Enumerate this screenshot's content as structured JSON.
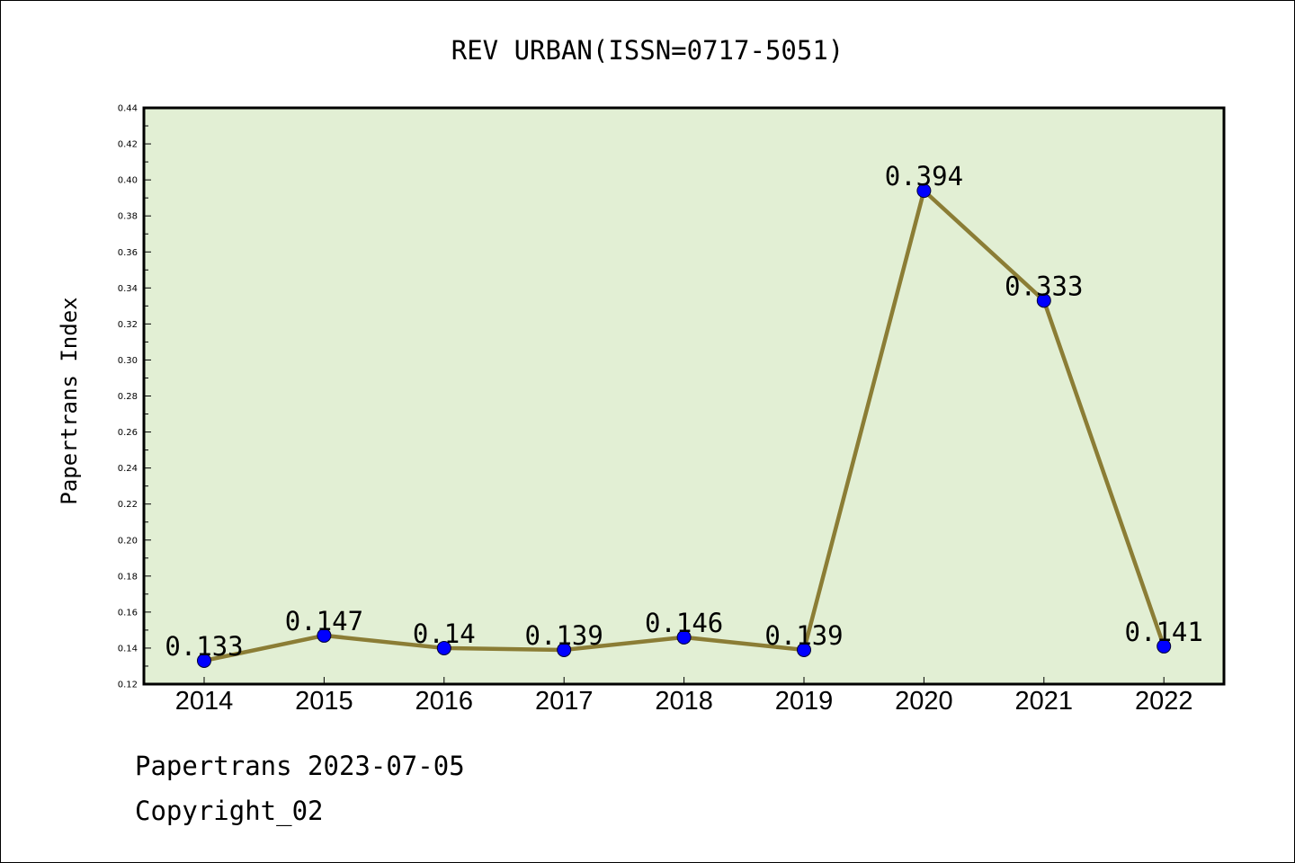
{
  "chart_data": {
    "type": "line",
    "title": "REV URBAN(ISSN=0717-5051)",
    "xlabel": "",
    "ylabel": "Papertrans Index",
    "categories": [
      "2014",
      "2015",
      "2016",
      "2017",
      "2018",
      "2019",
      "2020",
      "2021",
      "2022"
    ],
    "values": [
      0.133,
      0.147,
      0.14,
      0.139,
      0.146,
      0.139,
      0.394,
      0.333,
      0.141
    ],
    "data_labels": [
      "0.133",
      "0.147",
      "0.14",
      "0.139",
      "0.146",
      "0.139",
      "0.394",
      "0.333",
      "0.141"
    ],
    "ylim": [
      0.12,
      0.44
    ],
    "yticks": [
      "0.12",
      "0.14",
      "0.16",
      "0.18",
      "0.20",
      "0.22",
      "0.24",
      "0.26",
      "0.28",
      "0.30",
      "0.32",
      "0.34",
      "0.36",
      "0.38",
      "0.40",
      "0.42",
      "0.44"
    ],
    "grid": false,
    "colors": {
      "plot_background": "#e2efd4",
      "line": "#8b7d35",
      "marker": "#0000ff"
    }
  },
  "footer": {
    "line1": "Papertrans 2023-07-05",
    "line2": "Copyright_02"
  }
}
